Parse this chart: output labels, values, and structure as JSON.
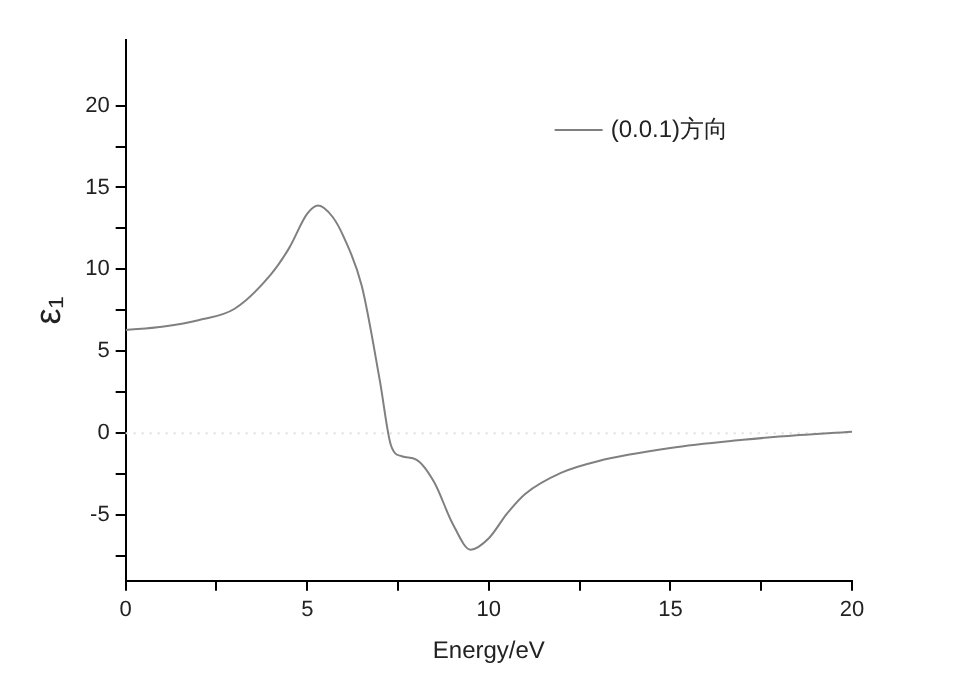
{
  "chart_data": {
    "type": "line",
    "xlabel": "Energy/eV",
    "ylabel": "ε₁",
    "x": [
      0,
      1,
      2,
      3,
      4,
      4.5,
      5,
      5.3,
      5.7,
      6,
      6.5,
      7,
      7.3,
      7.6,
      8,
      8.5,
      9,
      9.5,
      10,
      10.5,
      11,
      12,
      13,
      15,
      17,
      18,
      20
    ],
    "series": [
      {
        "name": "(0.0.1)方向",
        "color": "#808080",
        "values": [
          6.3,
          6.5,
          6.9,
          7.6,
          9.7,
          11.3,
          13.4,
          13.9,
          13.2,
          12.0,
          9.0,
          3.2,
          -0.7,
          -1.4,
          -1.6,
          -3.0,
          -5.5,
          -7.1,
          -6.4,
          -4.9,
          -3.7,
          -2.4,
          -1.7,
          -0.9,
          -0.4,
          -0.2,
          0.1
        ]
      }
    ],
    "xlim": [
      0,
      20
    ],
    "xticks": [
      0,
      {
        "value": 2.5,
        "label": null
      },
      5,
      {
        "value": 7.5,
        "label": null
      },
      10,
      {
        "value": 12.5,
        "label": null
      },
      15,
      {
        "value": 17.5,
        "label": null
      },
      20
    ],
    "ylim": [
      -9,
      24
    ],
    "yticks": [
      {
        "value": -7.5,
        "label": null
      },
      -5,
      {
        "value": -2.5,
        "label": null
      },
      0,
      {
        "value": 2.5,
        "label": null
      },
      5,
      {
        "value": 7.5,
        "label": null
      },
      10,
      {
        "value": 12.5,
        "label": null
      },
      15,
      {
        "value": 17.5,
        "label": null
      },
      20
    ],
    "ref_lines": [
      {
        "axis": "y",
        "value": 0,
        "label": null,
        "color": "#e0e0e0",
        "line_style": "dotted"
      }
    ],
    "grid": false,
    "legend": "top right",
    "marker": "none",
    "line_style": "solid"
  }
}
